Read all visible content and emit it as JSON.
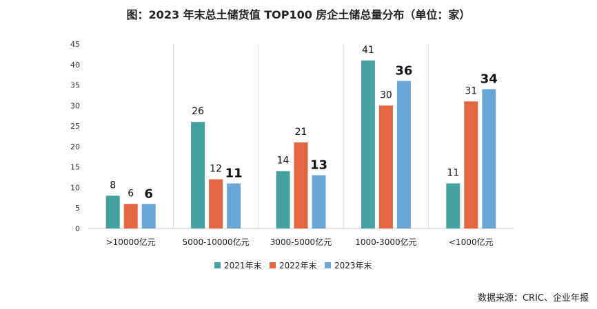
{
  "chart_data": {
    "type": "bar",
    "title": "图：2023 年末总土储货值 TOP100 房企土储总量分布（单位：家）",
    "categories": [
      ">10000亿元",
      "5000-10000亿元",
      "3000-5000亿元",
      "1000-3000亿元",
      "<1000亿元"
    ],
    "series": [
      {
        "name": "2021年末",
        "values": [
          8,
          26,
          14,
          41,
          11
        ],
        "color": "#45a0a2"
      },
      {
        "name": "2022年末",
        "values": [
          6,
          12,
          21,
          30,
          31
        ],
        "color": "#e46641"
      },
      {
        "name": "2023年末",
        "values": [
          6,
          11,
          13,
          36,
          34
        ],
        "color": "#6aa6d6"
      }
    ],
    "ylim": [
      0,
      45
    ],
    "yticks": [
      0,
      5,
      10,
      15,
      20,
      25,
      30,
      35,
      40,
      45
    ],
    "grid": "vertical-category-separators",
    "legend": "bottom-center",
    "highlight_series_index": 2
  },
  "source": "数据来源：CRIC、企业年报"
}
